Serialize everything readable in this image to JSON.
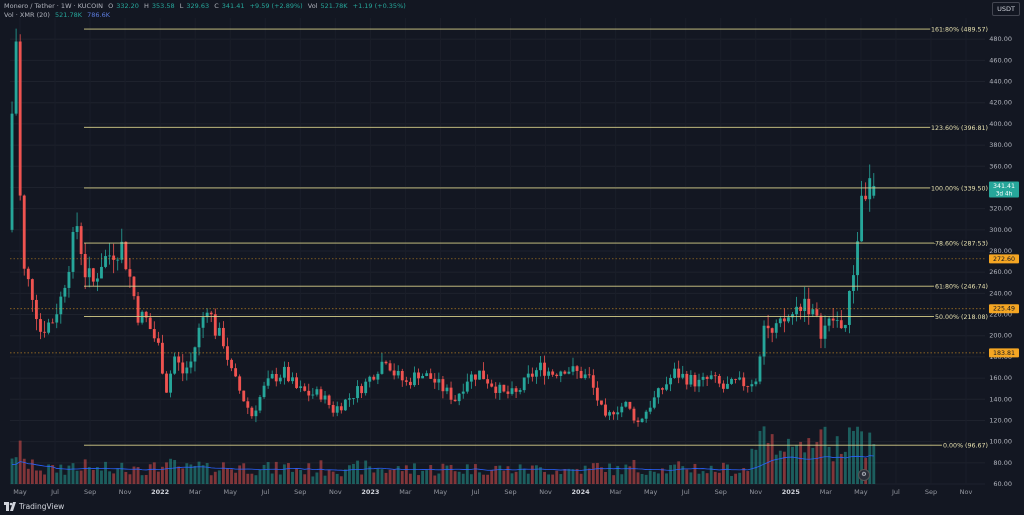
{
  "header": {
    "symbol": "Monero / Tether · 1W · KUCOIN",
    "open_label": "O",
    "open": "332.20",
    "high_label": "H",
    "high": "353.58",
    "low_label": "L",
    "low": "329.63",
    "close_label": "C",
    "close": "341.41",
    "change": "+9.59 (+2.89%)",
    "vol_label": "Vol",
    "vol_value": "521.78K",
    "change2": "+1.19 (+0.35%)",
    "vol_line_label": "Vol · XMR (20)",
    "vol_line_value": "521.78K",
    "vol_ma_value": "786.6K"
  },
  "currency_button": "USDT",
  "footer": {
    "brand": "TradingView"
  },
  "colors": {
    "up": "#26a69a",
    "down": "#ef5350",
    "fib": "#d8d08a",
    "vol_ma": "#2962ff",
    "price_tag": "#26a69a",
    "level_tag": "#f5a623",
    "background": "#131722"
  },
  "chart_data": {
    "type": "candlestick",
    "title": "Monero / Tether · 1W · KUCOIN",
    "y_axis": {
      "min": 60,
      "max": 500,
      "step": 20,
      "ticks": [
        "60.00",
        "80.00",
        "100.00",
        "120.00",
        "140.00",
        "160.00",
        "180.00",
        "200.00",
        "220.00",
        "240.00",
        "260.00",
        "280.00",
        "300.00",
        "320.00",
        "340.00",
        "360.00",
        "380.00",
        "400.00",
        "420.00",
        "440.00",
        "460.00",
        "480.00"
      ]
    },
    "x_axis": {
      "labels": [
        "May",
        "Jul",
        "Sep",
        "Nov",
        "2022",
        "Mar",
        "May",
        "Jul",
        "Sep",
        "Nov",
        "2023",
        "Mar",
        "May",
        "Jul",
        "Sep",
        "Nov",
        "2024",
        "Mar",
        "May",
        "Jul",
        "Sep",
        "Nov",
        "2025",
        "Mar",
        "May",
        "Jul",
        "Sep",
        "Nov"
      ],
      "year_labels": [
        "2022",
        "2023",
        "2024",
        "2025"
      ],
      "start": "2021-04-26",
      "end": "2025-11-30"
    },
    "fib_levels": [
      {
        "label": "161.80% (489.57)",
        "value": 489.57
      },
      {
        "label": "123.60% (396.81)",
        "value": 396.81
      },
      {
        "label": "100.00% (339.50)",
        "value": 339.5
      },
      {
        "label": "78.60% (287.53)",
        "value": 287.53
      },
      {
        "label": "61.80% (246.74)",
        "value": 246.74
      },
      {
        "label": "50.00% (218.08)",
        "value": 218.08
      },
      {
        "label": "0.00% (96.67)",
        "value": 96.67
      }
    ],
    "price_tags": [
      {
        "label": "341.41",
        "sub": "3d 4h",
        "value": 341.41,
        "kind": "last"
      },
      {
        "label": "272.60",
        "value": 272.6,
        "kind": "level"
      },
      {
        "label": "225.49",
        "value": 225.49,
        "kind": "level"
      },
      {
        "label": "183.81",
        "value": 183.81,
        "kind": "level"
      }
    ],
    "dotted_levels": [
      272.6,
      225.49,
      183.81
    ],
    "price_path": [
      [
        "2021-04-26",
        300
      ],
      [
        "2021-05-03",
        410
      ],
      [
        "2021-05-10",
        480
      ],
      [
        "2021-05-17",
        330
      ],
      [
        "2021-05-24",
        260
      ],
      [
        "2021-06-07",
        240
      ],
      [
        "2021-06-21",
        205
      ],
      [
        "2021-07-12",
        215
      ],
      [
        "2021-07-26",
        235
      ],
      [
        "2021-08-09",
        270
      ],
      [
        "2021-08-23",
        305
      ],
      [
        "2021-09-06",
        260
      ],
      [
        "2021-09-20",
        250
      ],
      [
        "2021-10-04",
        270
      ],
      [
        "2021-10-25",
        280
      ],
      [
        "2021-11-08",
        285
      ],
      [
        "2021-11-22",
        255
      ],
      [
        "2021-12-06",
        220
      ],
      [
        "2021-12-20",
        215
      ],
      [
        "2022-01-10",
        190
      ],
      [
        "2022-01-24",
        150
      ],
      [
        "2022-02-07",
        180
      ],
      [
        "2022-02-21",
        165
      ],
      [
        "2022-03-07",
        175
      ],
      [
        "2022-03-21",
        205
      ],
      [
        "2022-04-04",
        230
      ],
      [
        "2022-04-18",
        205
      ],
      [
        "2022-05-02",
        195
      ],
      [
        "2022-05-16",
        165
      ],
      [
        "2022-06-06",
        140
      ],
      [
        "2022-06-20",
        125
      ],
      [
        "2022-07-11",
        150
      ],
      [
        "2022-07-25",
        160
      ],
      [
        "2022-08-15",
        165
      ],
      [
        "2022-09-05",
        150
      ],
      [
        "2022-09-26",
        145
      ],
      [
        "2022-10-17",
        145
      ],
      [
        "2022-11-07",
        130
      ],
      [
        "2022-11-21",
        135
      ],
      [
        "2022-12-12",
        145
      ],
      [
        "2023-01-02",
        155
      ],
      [
        "2023-01-23",
        170
      ],
      [
        "2023-02-06",
        180
      ],
      [
        "2023-02-20",
        165
      ],
      [
        "2023-03-13",
        155
      ],
      [
        "2023-04-03",
        165
      ],
      [
        "2023-04-24",
        160
      ],
      [
        "2023-05-15",
        150
      ],
      [
        "2023-06-05",
        140
      ],
      [
        "2023-06-26",
        160
      ],
      [
        "2023-07-17",
        165
      ],
      [
        "2023-08-07",
        155
      ],
      [
        "2023-08-28",
        145
      ],
      [
        "2023-09-18",
        145
      ],
      [
        "2023-10-09",
        160
      ],
      [
        "2023-10-30",
        170
      ],
      [
        "2023-11-20",
        165
      ],
      [
        "2023-12-11",
        170
      ],
      [
        "2024-01-01",
        165
      ],
      [
        "2024-01-22",
        160
      ],
      [
        "2024-02-05",
        140
      ],
      [
        "2024-02-19",
        120
      ],
      [
        "2024-03-04",
        130
      ],
      [
        "2024-03-25",
        135
      ],
      [
        "2024-04-15",
        118
      ],
      [
        "2024-05-06",
        135
      ],
      [
        "2024-05-27",
        150
      ],
      [
        "2024-06-17",
        165
      ],
      [
        "2024-07-08",
        160
      ],
      [
        "2024-07-29",
        155
      ],
      [
        "2024-08-19",
        160
      ],
      [
        "2024-09-09",
        150
      ],
      [
        "2024-09-30",
        155
      ],
      [
        "2024-10-21",
        155
      ],
      [
        "2024-11-04",
        160
      ],
      [
        "2024-11-18",
        215
      ],
      [
        "2024-12-02",
        200
      ],
      [
        "2024-12-16",
        210
      ],
      [
        "2025-01-06",
        220
      ],
      [
        "2025-01-27",
        235
      ],
      [
        "2025-02-10",
        220
      ],
      [
        "2025-02-24",
        205
      ],
      [
        "2025-03-17",
        215
      ],
      [
        "2025-04-07",
        210
      ],
      [
        "2025-04-21",
        260
      ],
      [
        "2025-05-05",
        330
      ],
      [
        "2025-05-19",
        341.41
      ]
    ],
    "last_candle": {
      "date": "2025-05-19",
      "open": 332.2,
      "high": 353.58,
      "low": 329.63,
      "close": 341.41
    }
  }
}
